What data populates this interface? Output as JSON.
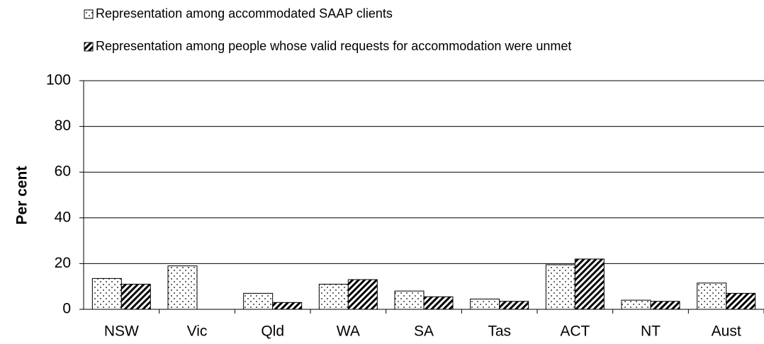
{
  "chart_data": {
    "type": "bar",
    "categories": [
      "NSW",
      "Vic",
      "Qld",
      "WA",
      "SA",
      "Tas",
      "ACT",
      "NT",
      "Aust"
    ],
    "series": [
      {
        "name": "Representation among accommodated SAAP clients",
        "color": "#000000",
        "pattern": "dots",
        "values": [
          13.5,
          19,
          7,
          11,
          8,
          4.5,
          19.5,
          4,
          11.5
        ]
      },
      {
        "name": "Representation among people whose valid requests for accommodation were unmet",
        "color": "#000000",
        "pattern": "hatch",
        "values": [
          11,
          null,
          3,
          13,
          5.5,
          3.5,
          22,
          3.5,
          7
        ]
      }
    ],
    "ylabel": "Per cent",
    "ylim": [
      0,
      100
    ],
    "yticks": [
      0,
      20,
      40,
      60,
      80,
      100
    ],
    "grid": true
  }
}
